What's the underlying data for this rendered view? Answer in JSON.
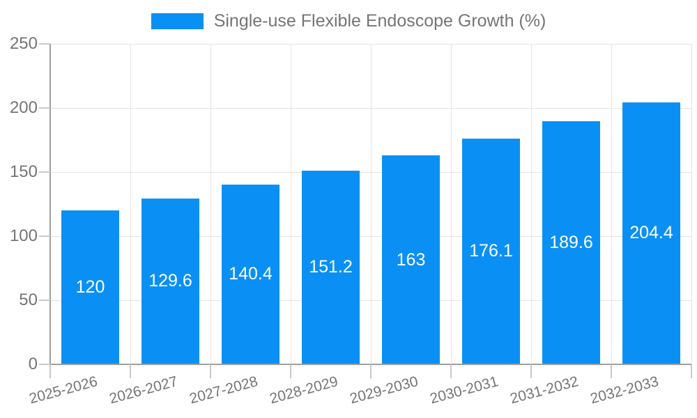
{
  "legend": {
    "label": "Single-use Flexible Endoscope Growth (%)",
    "swatch_color": "#0a90f5"
  },
  "chart_data": {
    "type": "bar",
    "title": "Single-use Flexible Endoscope Growth (%)",
    "categories": [
      "2025-2026",
      "2026-2027",
      "2027-2028",
      "2028-2029",
      "2029-2030",
      "2030-2031",
      "2031-2032",
      "2032-2033"
    ],
    "values": [
      120,
      129.6,
      140.4,
      151.2,
      163,
      176.1,
      189.6,
      204.4
    ],
    "value_labels": [
      "120",
      "129.6",
      "140.4",
      "151.2",
      "163",
      "176.1",
      "189.6",
      "204.4"
    ],
    "y_ticks": [
      0,
      50,
      100,
      150,
      200,
      250
    ],
    "y_tick_labels": [
      "0",
      "50",
      "100",
      "150",
      "200",
      "250"
    ],
    "ylim": [
      0,
      250
    ],
    "xlabel": "",
    "ylabel": "",
    "grid": "horizontal and vertical gridlines on",
    "legend_position": "top-center",
    "value_label_position": "centered inside bar",
    "x_label_rotation_deg": -15,
    "colors": {
      "bar": "#0a90f5",
      "bar_value_text": "#ffffff",
      "axis_line": "#9e9e9e",
      "gridline": "#e4e4e4",
      "tick_mark": "#c9c9c9",
      "tick_text": "#757575",
      "legend_text": "#757575"
    }
  }
}
